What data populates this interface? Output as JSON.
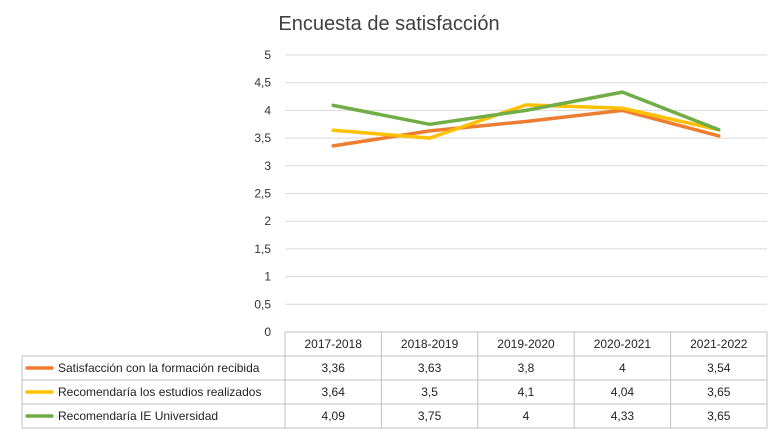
{
  "chart_data": {
    "type": "line",
    "title": "Encuesta de satisfacción",
    "categories": [
      "2017-2018",
      "2018-2019",
      "2019-2020",
      "2020-2021",
      "2021-2022"
    ],
    "ylim": [
      0,
      5
    ],
    "yticks": [
      "0",
      "0,5",
      "1",
      "1,5",
      "2",
      "2,5",
      "3",
      "3,5",
      "4",
      "4,5",
      "5"
    ],
    "grid": true,
    "legend": "data-table-left",
    "series": [
      {
        "name": "Satisfacción con la formación recibida",
        "color": "#ED7D31",
        "values": [
          3.36,
          3.63,
          3.8,
          4,
          3.54
        ],
        "labels": [
          "3,36",
          "3,63",
          "3,8",
          "4",
          "3,54"
        ]
      },
      {
        "name": "Recomendaría los estudios realizados",
        "color": "#FFC000",
        "values": [
          3.64,
          3.5,
          4.1,
          4.04,
          3.65
        ],
        "labels": [
          "3,64",
          "3,5",
          "4,1",
          "4,04",
          "3,65"
        ]
      },
      {
        "name": "Recomendaría IE Universidad",
        "color": "#70AD47",
        "values": [
          4.09,
          3.75,
          4,
          4.33,
          3.65
        ],
        "labels": [
          "4,09",
          "3,75",
          "4",
          "4,33",
          "3,65"
        ]
      }
    ]
  }
}
